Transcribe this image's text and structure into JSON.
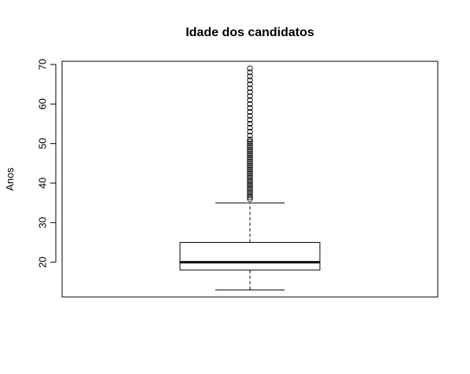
{
  "chart_data": {
    "type": "boxplot",
    "title": "Idade dos candidatos",
    "ylabel": "Anos",
    "xlabel": "",
    "ylim": [
      11.2,
      70.8
    ],
    "yticks": [
      20,
      30,
      40,
      50,
      60,
      70
    ],
    "ytick_labels": [
      "20",
      "30",
      "40",
      "50",
      "60",
      "70"
    ],
    "grid": false,
    "legend": "none",
    "box": {
      "whisker_low": 13,
      "q1": 18,
      "median": 20,
      "q3": 25,
      "whisker_high": 35
    },
    "outliers": [
      36,
      36.5,
      37,
      37.5,
      38,
      38.5,
      39,
      39.5,
      40,
      40.5,
      41,
      41.5,
      42,
      42.5,
      43,
      43.5,
      44,
      44.5,
      45,
      45.5,
      46,
      46.5,
      47,
      47.5,
      48,
      48.5,
      49,
      49.5,
      50,
      50.5,
      51,
      52,
      53,
      54,
      55,
      56,
      57,
      58,
      59,
      60,
      61,
      62,
      63,
      64,
      65,
      66,
      67,
      68,
      69
    ]
  }
}
